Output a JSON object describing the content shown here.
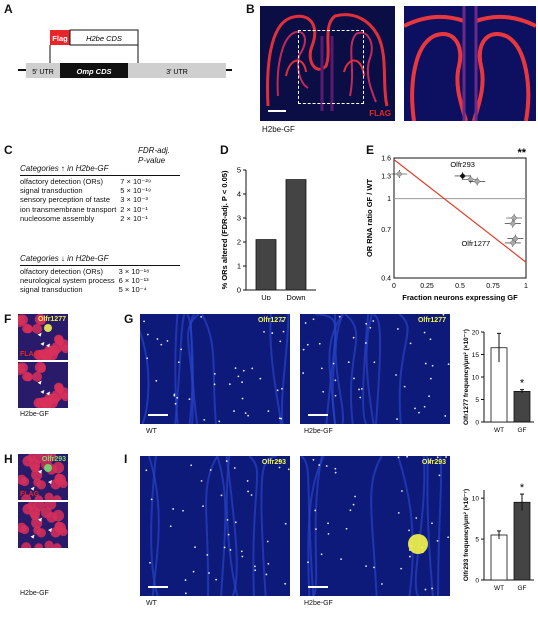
{
  "panels": {
    "A": {
      "letter": "A",
      "flag_label": "Flag",
      "h2be_cds": "H2be CDS",
      "utr5": "5′ UTR",
      "omp_cds": "Omp CDS",
      "utr3": "3′ UTR"
    },
    "B": {
      "letter": "B",
      "flag_text": "FLAG",
      "caption": "H2be-GF"
    },
    "C": {
      "letter": "C",
      "header_up": "Categories ↑ in H2be-GF",
      "header_p": "FDR-adj.",
      "header_p2": "P-value",
      "rows_up": [
        {
          "cat": "olfactory detection (ORs)",
          "p": "7 × 10⁻²⁹"
        },
        {
          "cat": "signal transduction",
          "p": "5 × 10⁻¹⁹"
        },
        {
          "cat": "sensory perception of taste",
          "p": "3 × 10⁻³"
        },
        {
          "cat": "ion transmembrane transport",
          "p": "2 × 10⁻¹"
        },
        {
          "cat": "nucleosome assembly",
          "p": "2 × 10⁻¹"
        }
      ],
      "header_down": "Categories ↓ in H2be-GF",
      "rows_down": [
        {
          "cat": "olfactory detection (ORs)",
          "p": "3 × 10⁻¹⁸"
        },
        {
          "cat": "neurological system process",
          "p": "6 × 10⁻¹³"
        },
        {
          "cat": "signal transduction",
          "p": "5 × 10⁻⁴"
        }
      ]
    },
    "D": {
      "letter": "D",
      "ylabel": "% ORs altered (FDR-adj. P < 0.05)",
      "ticks": [
        "0",
        "1",
        "2",
        "3",
        "4",
        "5"
      ]
    },
    "E": {
      "letter": "E",
      "ylabel": "OR RNA ratio GF / WT",
      "xlabel": "Fraction neurons expressing GF",
      "stars": "**",
      "label_a": "Olfr293",
      "label_b": "Olfr1277",
      "xticks": [
        "0",
        "0.25",
        "0.5",
        "0.75",
        "1"
      ],
      "yticks": [
        "0.4",
        "0.7",
        "1",
        "1.3",
        "1.6"
      ]
    },
    "F": {
      "letter": "F",
      "olfr": "Olfr1277",
      "flag": "FLAG",
      "caption": "H2be-GF"
    },
    "G": {
      "letter": "G",
      "olfr_wt": "Olfr1277",
      "olfr_gf": "Olfr1277",
      "cap_wt": "WT",
      "cap_gf": "H2be-GF",
      "ylabel": "Olfr1277 frequency/μm² (×10⁻⁷)",
      "star": "*",
      "yticks": [
        "0",
        "5",
        "10",
        "15",
        "20"
      ]
    },
    "H": {
      "letter": "H",
      "olfr": "Olfr293",
      "flag": "FLAG",
      "caption": "H2be-GF"
    },
    "I": {
      "letter": "I",
      "olfr_wt": "Olfr293",
      "olfr_gf": "Olfr293",
      "cap_wt": "WT",
      "cap_gf": "H2be-GF",
      "ylabel": "Olfr293 frequency/μm² (×10⁻⁷)",
      "star": "*",
      "yticks": [
        "0",
        "5",
        "10"
      ]
    }
  },
  "chart_data": [
    {
      "type": "bar",
      "panel": "D",
      "categories": [
        "Up",
        "Down"
      ],
      "values": [
        2.1,
        4.6
      ],
      "ylabel": "% ORs altered (FDR-adj. P < 0.05)",
      "ylim": [
        0,
        5
      ]
    },
    {
      "type": "scatter",
      "panel": "E",
      "x": [
        0.04,
        0.52,
        0.58,
        0.63,
        0.91,
        0.9,
        0.92,
        0.9
      ],
      "y": [
        1.33,
        1.3,
        1.25,
        1.22,
        0.8,
        0.75,
        0.63,
        0.6
      ],
      "xlabel": "Fraction neurons expressing GF",
      "ylabel": "OR RNA ratio GF / WT",
      "xlim": [
        0,
        1
      ],
      "ylim": [
        0.4,
        1.6
      ],
      "ylog": true
    },
    {
      "type": "bar",
      "panel": "G",
      "categories": [
        "WT",
        "GF"
      ],
      "values": [
        16.5,
        6.8
      ],
      "ylabel": "Olfr1277 frequency/μm² (×10⁻⁷)",
      "ylim": [
        0,
        20
      ]
    },
    {
      "type": "bar",
      "panel": "I",
      "categories": [
        "WT",
        "GF"
      ],
      "values": [
        5.5,
        9.5
      ],
      "ylabel": "Olfr293 frequency/μm² (×10⁻⁷)",
      "ylim": [
        0,
        11
      ]
    }
  ],
  "colors": {
    "flag_red": "#e8262a",
    "nuclei_blue": "#1a2c9a",
    "olfr_yellow": "#f7f74a",
    "fit_red": "#e0402a",
    "bar_dark": "#404040"
  }
}
